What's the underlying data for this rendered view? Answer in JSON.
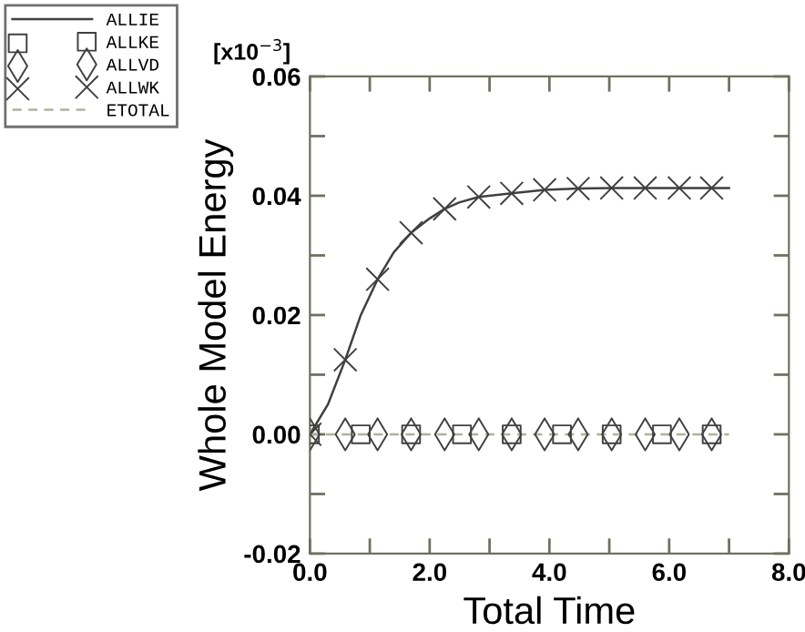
{
  "chart_data": {
    "type": "line",
    "xlabel": "Total Time",
    "ylabel": "Whole Model Energy",
    "annotations": [
      "[x10$^{−3}$]"
    ],
    "series": [
      {
        "name": "ALLIE",
        "color": "#404040",
        "marker": "none",
        "line_style": "solid",
        "x": [
          0,
          0.3,
          0.59,
          0.85,
          1.13,
          1.4,
          1.69,
          2.0,
          2.25,
          2.5,
          2.82,
          3.37,
          3.92,
          4.48,
          5.04,
          5.6,
          6.17,
          6.71,
          7.0
        ],
        "values": [
          0,
          0.005,
          0.0125,
          0.02,
          0.026,
          0.0305,
          0.0338,
          0.0362,
          0.0378,
          0.0389,
          0.0398,
          0.0404,
          0.041,
          0.0412,
          0.0413,
          0.0413,
          0.0413,
          0.0413,
          0.0413
        ]
      },
      {
        "name": "ALLKE",
        "type": "scatter",
        "color": "#404040",
        "marker": "square",
        "x": [
          0,
          0.85,
          1.69,
          2.54,
          3.37,
          4.21,
          5.04,
          5.88,
          6.71
        ],
        "values": [
          0,
          0,
          0,
          0,
          0,
          0,
          0,
          0,
          0
        ]
      },
      {
        "name": "ALLVD",
        "type": "scatter",
        "color": "#404040",
        "marker": "diamond",
        "x": [
          0,
          0.59,
          1.13,
          1.69,
          2.25,
          2.82,
          3.37,
          3.92,
          4.48,
          5.04,
          5.6,
          6.17,
          6.71
        ],
        "values": [
          0,
          0,
          0,
          0,
          0,
          0,
          0,
          0,
          0,
          0,
          0,
          0,
          0
        ]
      },
      {
        "name": "ALLWK",
        "type": "scatter",
        "color": "#404040",
        "marker": "cross",
        "x": [
          0,
          0.59,
          1.13,
          1.69,
          2.25,
          2.82,
          3.37,
          3.92,
          4.48,
          5.04,
          5.6,
          6.17,
          6.71
        ],
        "values": [
          0,
          0.0125,
          0.026,
          0.0338,
          0.0378,
          0.0398,
          0.0404,
          0.041,
          0.0412,
          0.0413,
          0.0413,
          0.0413,
          0.0413
        ]
      },
      {
        "name": "ETOTAL",
        "color": "#b0b0a0",
        "marker": "none",
        "line_style": "dashed",
        "x": [
          0,
          7.0
        ],
        "values": [
          0,
          0
        ]
      }
    ],
    "xlim": [
      0,
      8
    ],
    "ylim": [
      -0.02,
      0.06
    ],
    "xticks": [
      {
        "value": 0,
        "label": "0.0"
      },
      {
        "value": 1,
        "label": null
      },
      {
        "value": 2,
        "label": "2.0"
      },
      {
        "value": 3,
        "label": null
      },
      {
        "value": 4,
        "label": "4.0"
      },
      {
        "value": 5,
        "label": null
      },
      {
        "value": 6,
        "label": "6.0"
      },
      {
        "value": 7,
        "label": null
      },
      {
        "value": 8,
        "label": "8.0"
      }
    ],
    "yticks": [
      {
        "value": -0.02,
        "label": "-0.02"
      },
      {
        "value": -0.01,
        "label": null
      },
      {
        "value": 0,
        "label": "0.00"
      },
      {
        "value": 0.01,
        "label": null
      },
      {
        "value": 0.02,
        "label": "0.02"
      },
      {
        "value": 0.03,
        "label": null
      },
      {
        "value": 0.04,
        "label": "0.04"
      },
      {
        "value": 0.05,
        "label": null
      },
      {
        "value": 0.06,
        "label": "0.06"
      }
    ],
    "grid": false,
    "legend": "top left"
  }
}
